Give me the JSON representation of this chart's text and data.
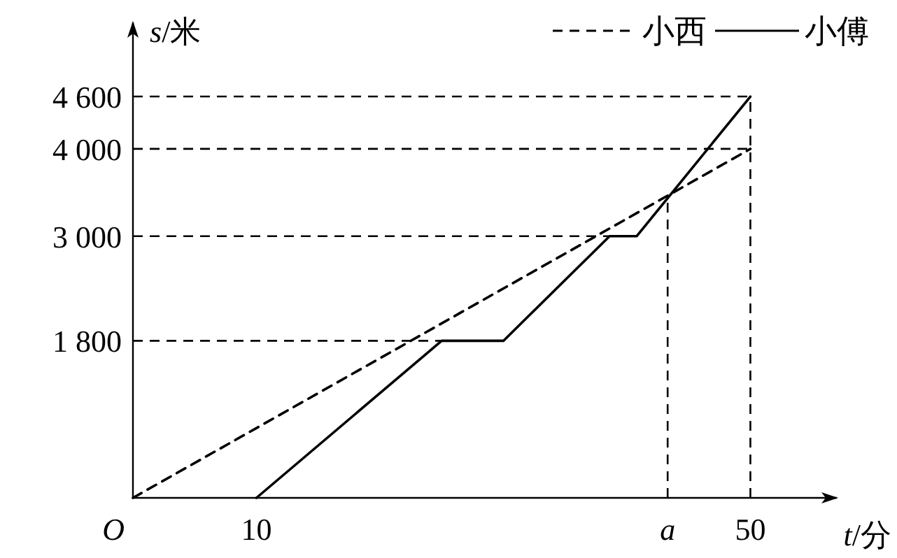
{
  "chart_data": {
    "type": "line",
    "xlabel": "t/分",
    "ylabel": "s/米",
    "xlim": [
      0,
      57
    ],
    "ylim": [
      0,
      5450
    ],
    "xticks": [
      10,
      {
        "value": 43.3,
        "label": "a"
      },
      50
    ],
    "annotations": [
      {
        "text": "O",
        "x": 0,
        "y": 0
      }
    ],
    "yticks": [
      {
        "value": 1800,
        "label": "1 800"
      },
      {
        "value": 3000,
        "label": "3 000"
      },
      {
        "value": 4000,
        "label": "4 000"
      },
      {
        "value": 4600,
        "label": "4 600"
      }
    ],
    "grid": false,
    "legend": "top right",
    "marker": "none",
    "series": [
      {
        "name": "小西",
        "color": "#000000",
        "line_style": "dashed",
        "x": [
          0,
          50
        ],
        "values": [
          0,
          4000
        ]
      },
      {
        "name": "小傅",
        "color": "#000000",
        "line_style": "solid",
        "x": [
          10,
          25,
          30,
          38.6,
          40.8,
          50
        ],
        "values": [
          0,
          1800,
          1800,
          3000,
          3000,
          4600
        ]
      }
    ],
    "ref_lines": [
      {
        "axis": "y",
        "value": 4600,
        "line_style": "dashed",
        "color": "#000000"
      },
      {
        "axis": "y",
        "value": 4000,
        "line_style": "dashed",
        "color": "#000000"
      },
      {
        "axis": "y",
        "value": 3000,
        "line_style": "dashed",
        "color": "#000000"
      },
      {
        "axis": "y",
        "value": 1800,
        "line_style": "dashed",
        "color": "#000000"
      },
      {
        "axis": "x",
        "value": 43.3,
        "line_style": "dashed",
        "color": "#000000"
      },
      {
        "axis": "x",
        "value": 50,
        "line_style": "dashed",
        "color": "#000000"
      }
    ]
  }
}
